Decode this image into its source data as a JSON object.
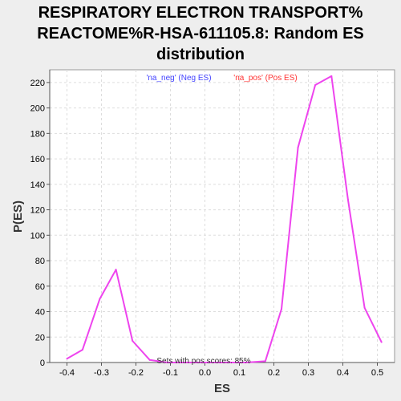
{
  "chart_data": {
    "type": "line",
    "title_lines": [
      "RESPIRATORY ELECTRON TRANSPORT%",
      "REACTOME%R-HSA-611105.8: Random ES",
      "distribution"
    ],
    "xlabel": "ES",
    "ylabel": "P(ES)",
    "xlim": [
      -0.45,
      0.55
    ],
    "ylim": [
      0,
      230
    ],
    "x_ticks": [
      -0.4,
      -0.3,
      -0.2,
      -0.1,
      0.0,
      0.1,
      0.2,
      0.3,
      0.4,
      0.5
    ],
    "x_tick_labels": [
      "-0.4",
      "-0.3",
      "-0.2",
      "-0.1",
      "0.0",
      "0.1",
      "0.2",
      "0.3",
      "0.4",
      "0.5"
    ],
    "y_ticks": [
      0,
      20,
      40,
      60,
      80,
      100,
      120,
      140,
      160,
      180,
      200,
      220
    ],
    "y_tick_labels": [
      "0",
      "20",
      "40",
      "60",
      "80",
      "100",
      "120",
      "140",
      "160",
      "180",
      "200",
      "220"
    ],
    "grid": true,
    "legend": {
      "placement": "top-center",
      "entries": [
        {
          "label": "'na_neg' (Neg ES)",
          "color": "#4444ff"
        },
        {
          "label": "'na_pos' (Pos ES)",
          "color": "#ff3333"
        }
      ]
    },
    "annotation": "Sets with pos scores: 85%",
    "series": [
      {
        "color": "#ee44ee",
        "x": [
          -0.4,
          -0.355,
          -0.305,
          -0.258,
          -0.21,
          -0.16,
          -0.11,
          0.12,
          0.175,
          0.222,
          0.27,
          0.32,
          0.367,
          0.415,
          0.463,
          0.512
        ],
        "y": [
          3,
          10,
          50,
          73,
          17,
          2,
          0,
          0,
          1,
          42,
          169,
          218,
          225,
          128,
          43,
          16
        ]
      }
    ]
  },
  "colors": {
    "background": "#eeeeee",
    "plot_background": "#ffffff",
    "line": "#ee44ee",
    "grid": "#dddddd"
  }
}
